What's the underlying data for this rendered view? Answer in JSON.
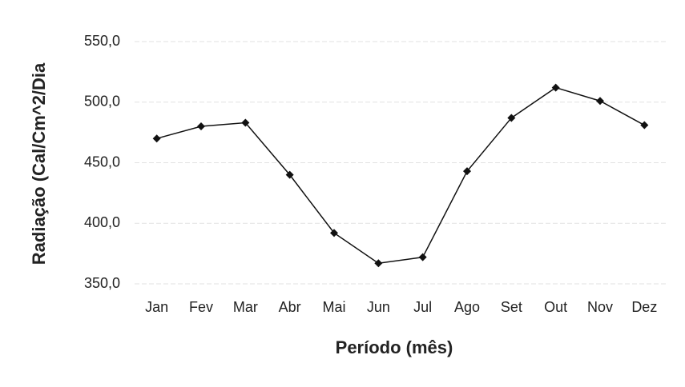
{
  "chart_data": {
    "type": "line",
    "y_label": "Radiação (Cal/Cm^2/Dia",
    "x_label": "Período (mês)",
    "categories": [
      "Jan",
      "Fev",
      "Mar",
      "Abr",
      "Mai",
      "Jun",
      "Jul",
      "Ago",
      "Set",
      "Out",
      "Nov",
      "Dez"
    ],
    "series": [
      {
        "color": "#111111",
        "values": [
          470,
          480,
          483,
          440,
          392,
          367,
          372,
          443,
          487,
          512,
          501,
          481
        ]
      }
    ],
    "ylim": [
      350,
      550
    ],
    "yticks": [
      {
        "value": 350,
        "label": "350,0"
      },
      {
        "value": 400,
        "label": "400,0"
      },
      {
        "value": 450,
        "label": "450,0"
      },
      {
        "value": 500,
        "label": "500,0"
      },
      {
        "value": 550,
        "label": "550,0"
      }
    ],
    "grid": true
  }
}
